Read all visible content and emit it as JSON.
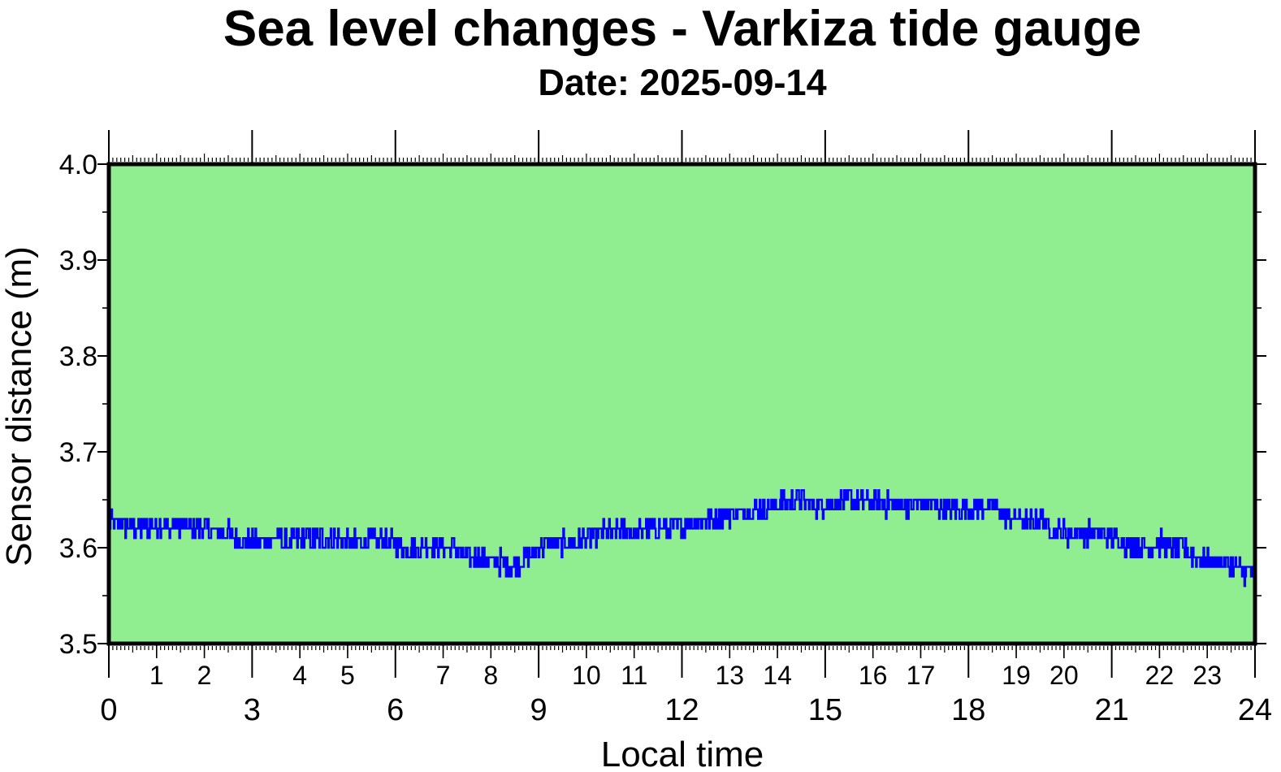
{
  "title": "Sea level changes - Varkiza tide gauge",
  "subtitle": "Date: 2025-09-14",
  "colors": {
    "plot_background": "#90ee90",
    "series_line": "#0000ff",
    "frame": "#000000"
  },
  "chart_data": {
    "type": "line",
    "xlabel": "Local time",
    "ylabel": "Sensor distance (m)",
    "xlim": [
      0,
      24
    ],
    "ylim": [
      3.5,
      4.0
    ],
    "x_major_ticks": [
      "0",
      "3",
      "6",
      "9",
      "12",
      "15",
      "18",
      "21",
      "24"
    ],
    "x_minor_ticks": [
      "1",
      "2",
      "4",
      "5",
      "7",
      "8",
      "10",
      "11",
      "13",
      "14",
      "16",
      "17",
      "19",
      "20",
      "22",
      "23"
    ],
    "y_ticks": [
      "3.5",
      "3.6",
      "3.7",
      "3.8",
      "3.9",
      "4.0"
    ],
    "grid": false,
    "series": [
      {
        "x": [
          0.0,
          0.25,
          0.5,
          0.75,
          1.0,
          1.25,
          1.5,
          1.75,
          2.0,
          2.25,
          2.5,
          2.75,
          3.0,
          3.25,
          3.5,
          3.75,
          4.0,
          4.25,
          4.5,
          4.75,
          5.0,
          5.25,
          5.5,
          5.75,
          6.0,
          6.25,
          6.5,
          6.75,
          7.0,
          7.25,
          7.5,
          7.75,
          8.0,
          8.25,
          8.5,
          8.75,
          9.0,
          9.25,
          9.5,
          9.75,
          10.0,
          10.25,
          10.5,
          10.75,
          11.0,
          11.25,
          11.5,
          11.75,
          12.0,
          12.25,
          12.5,
          12.75,
          13.0,
          13.25,
          13.5,
          13.75,
          14.0,
          14.25,
          14.5,
          14.75,
          15.0,
          15.25,
          15.5,
          15.75,
          16.0,
          16.25,
          16.5,
          16.75,
          17.0,
          17.25,
          17.5,
          17.75,
          18.0,
          18.25,
          18.5,
          18.75,
          19.0,
          19.25,
          19.5,
          19.75,
          20.0,
          20.25,
          20.5,
          20.75,
          21.0,
          21.25,
          21.5,
          21.75,
          22.0,
          22.25,
          22.5,
          22.75,
          23.0,
          23.25,
          23.5,
          23.75,
          24.0
        ],
        "y": [
          3.625,
          3.625,
          3.62,
          3.62,
          3.625,
          3.62,
          3.625,
          3.62,
          3.62,
          3.615,
          3.615,
          3.61,
          3.605,
          3.605,
          3.61,
          3.605,
          3.61,
          3.61,
          3.61,
          3.61,
          3.605,
          3.605,
          3.61,
          3.605,
          3.605,
          3.6,
          3.6,
          3.605,
          3.6,
          3.6,
          3.59,
          3.59,
          3.585,
          3.585,
          3.58,
          3.59,
          3.6,
          3.605,
          3.605,
          3.605,
          3.61,
          3.615,
          3.615,
          3.62,
          3.615,
          3.62,
          3.62,
          3.62,
          3.625,
          3.625,
          3.63,
          3.63,
          3.635,
          3.635,
          3.64,
          3.64,
          3.645,
          3.65,
          3.65,
          3.645,
          3.645,
          3.645,
          3.65,
          3.648,
          3.648,
          3.645,
          3.645,
          3.645,
          3.645,
          3.645,
          3.642,
          3.64,
          3.642,
          3.642,
          3.642,
          3.635,
          3.63,
          3.625,
          3.63,
          3.62,
          3.615,
          3.615,
          3.615,
          3.615,
          3.61,
          3.605,
          3.605,
          3.6,
          3.605,
          3.6,
          3.6,
          3.59,
          3.585,
          3.585,
          3.58,
          3.575,
          3.575
        ]
      }
    ]
  }
}
